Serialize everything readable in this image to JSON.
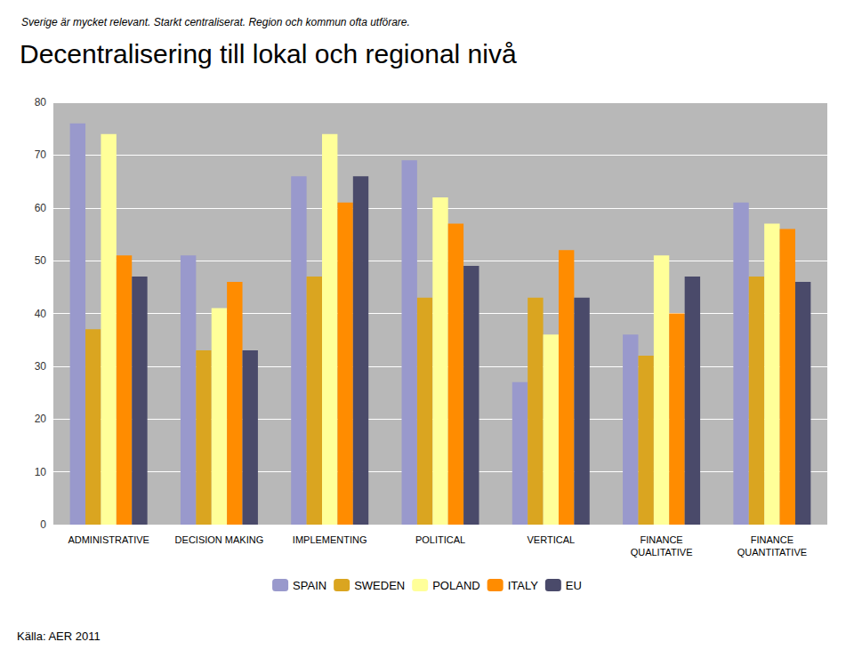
{
  "chart_data": {
    "type": "bar",
    "title": "Decentralisering till lokal och regional nivå",
    "subtitle": "Sverige är mycket relevant. Starkt centraliserat. Region och kommun ofta utförare.",
    "annotations": [
      "Källa: AER 2011"
    ],
    "categories": [
      "ADMINISTRATIVE",
      "DECISION MAKING",
      "IMPLEMENTING",
      "POLITICAL",
      "VERTICAL",
      "FINANCE\nQUALITATIVE",
      "FINANCE\nQUANTITATIVE"
    ],
    "series": [
      {
        "name": "SPAIN",
        "color": "#9999cc",
        "values": [
          76,
          51,
          66,
          69,
          27,
          36,
          61
        ]
      },
      {
        "name": "SWEDEN",
        "color": "#daa520",
        "values": [
          37,
          33,
          47,
          43,
          43,
          32,
          47
        ]
      },
      {
        "name": "POLAND",
        "color": "#ffff99",
        "values": [
          74,
          41,
          74,
          62,
          36,
          51,
          57
        ]
      },
      {
        "name": "ITALY",
        "color": "#ff8c00",
        "values": [
          51,
          46,
          61,
          57,
          52,
          40,
          56
        ]
      },
      {
        "name": "EU",
        "color": "#4a4a6a",
        "values": [
          47,
          33,
          66,
          49,
          43,
          47,
          46
        ]
      }
    ],
    "ylim": [
      0,
      80
    ],
    "yticks": [
      0,
      10,
      20,
      30,
      40,
      50,
      60,
      70,
      80
    ],
    "grid": true,
    "legend": "bottom"
  }
}
